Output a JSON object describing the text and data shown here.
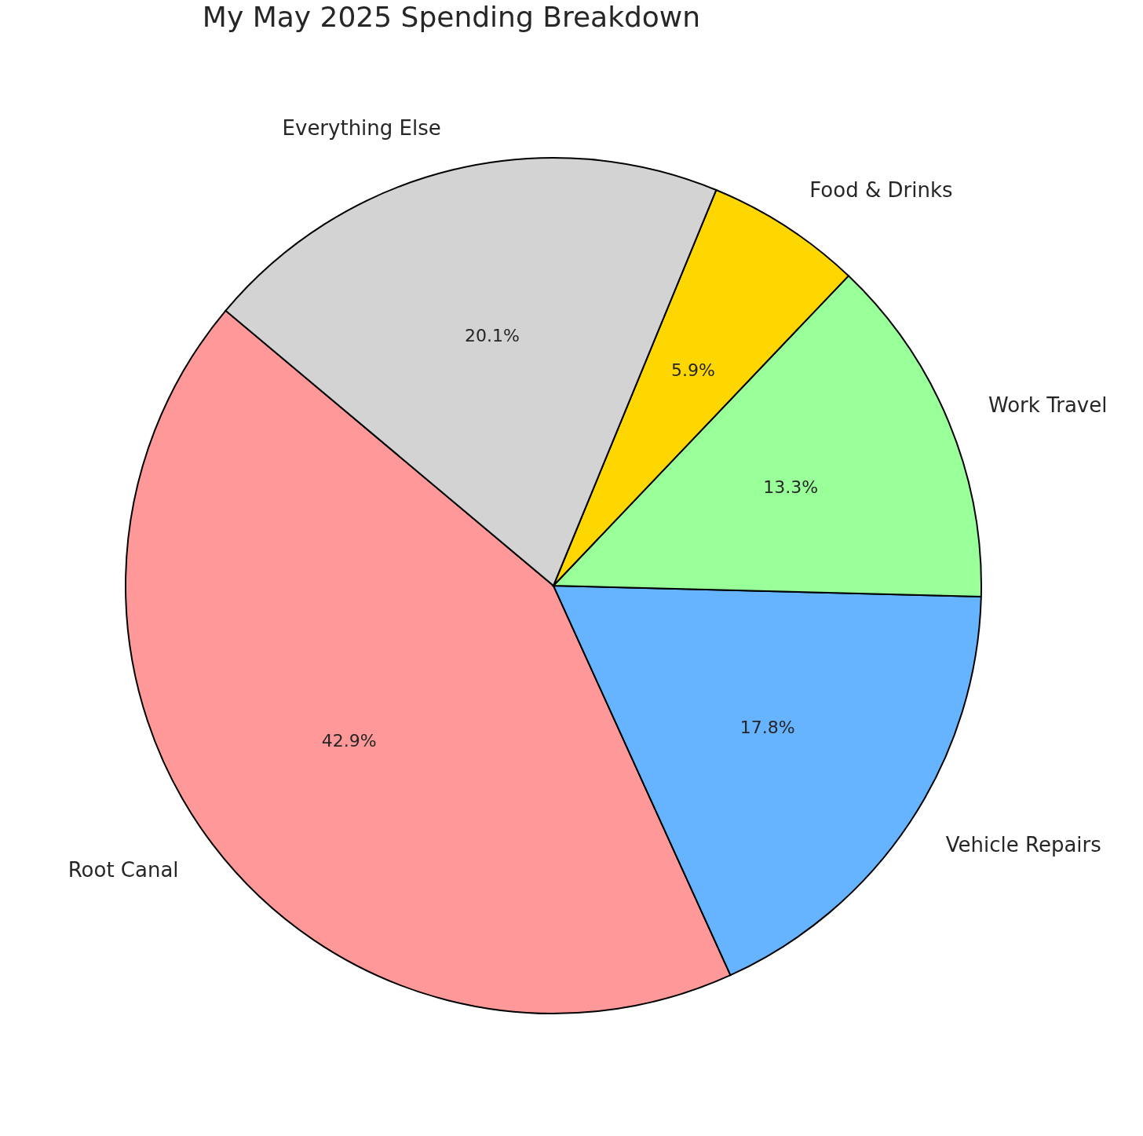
{
  "chart_data": {
    "type": "pie",
    "title": "My May 2025 Spending Breakdown",
    "categories": [
      "Root Canal",
      "Vehicle Repairs",
      "Work Travel",
      "Food & Drinks",
      "Everything Else"
    ],
    "values": [
      42.9,
      17.8,
      13.3,
      5.9,
      20.1
    ],
    "colors": [
      "#ff9999",
      "#66b3ff",
      "#99ff99",
      "#ffd700",
      "#d3d3d3"
    ],
    "value_labels": [
      "42.9%",
      "17.8%",
      "13.3%",
      "5.9%",
      "20.1%"
    ]
  }
}
